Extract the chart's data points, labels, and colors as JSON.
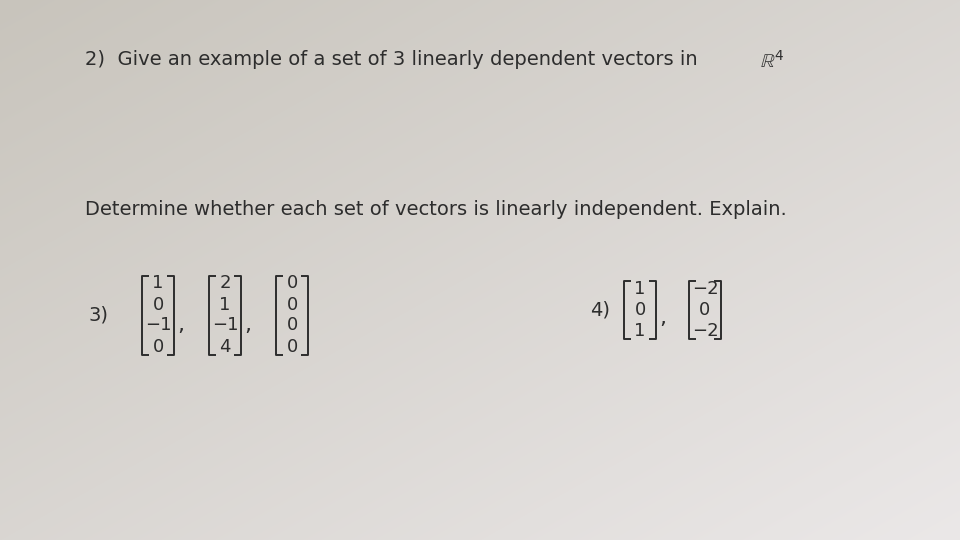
{
  "bg_color_tl": "#c8c4bc",
  "bg_color_br": "#e8e8e8",
  "text_color": "#2d2d2d",
  "q2_text": "2)  Give an example of a set of 3 linearly dependent vectors in ",
  "q2_R4": "$\\mathbb{R}^4$",
  "subtitle": "Determine whether each set of vectors is linearly independent. Explain.",
  "q3_label": "3)",
  "q4_label": "4)",
  "q3_vec1": [
    "1",
    "0",
    "−1",
    "0"
  ],
  "q3_vec2": [
    "2",
    "1",
    "−1",
    "4"
  ],
  "q3_vec3": [
    "0",
    "0",
    "0",
    "0"
  ],
  "q4_vec1": [
    "1",
    "0",
    "1"
  ],
  "q4_vec2": [
    "−2",
    "0",
    "−2"
  ],
  "font_size_main": 14,
  "font_size_matrix": 13
}
